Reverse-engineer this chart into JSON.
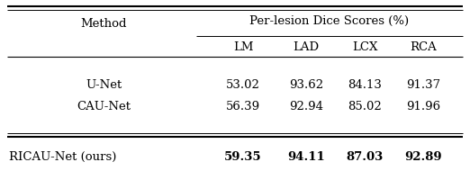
{
  "title_group": "Per-lesion Dice Scores (%)",
  "col_headers": [
    "LM",
    "LAD",
    "LCX",
    "RCA"
  ],
  "row_label": "Method",
  "rows": [
    {
      "method": "U-Net",
      "values": [
        "53.02",
        "93.62",
        "84.13",
        "91.37"
      ],
      "bold": false
    },
    {
      "method": "CAU-Net",
      "values": [
        "56.39",
        "92.94",
        "85.02",
        "91.96"
      ],
      "bold": false
    },
    {
      "method": "RICAU-Net (ours)",
      "values": [
        "59.35",
        "94.11",
        "87.03",
        "92.89"
      ],
      "bold": true
    }
  ],
  "bg_color": "white",
  "font_family": "serif",
  "fontsize": 9.5
}
